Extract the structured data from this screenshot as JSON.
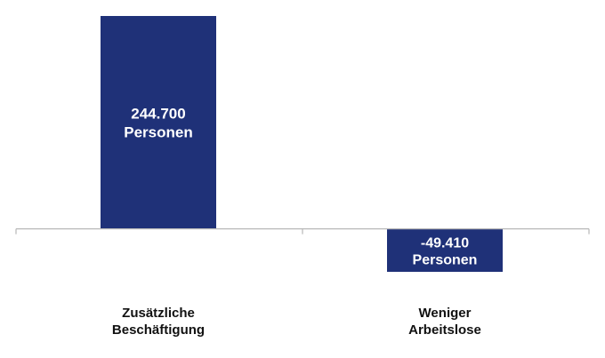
{
  "chart_data": {
    "type": "bar",
    "categories": [
      "Zusätzliche Beschäftigung",
      "Weniger Arbeitslose"
    ],
    "category_label_lines": [
      [
        "Zusätzliche",
        "Beschäftigung"
      ],
      [
        "Weniger",
        "Arbeitslose"
      ]
    ],
    "values": [
      244700,
      -49410
    ],
    "data_labels": [
      [
        "244.700",
        "Personen"
      ],
      [
        "-49.410",
        "Personen"
      ]
    ],
    "ylim": [
      -49410,
      244700
    ],
    "grid": false,
    "legend": "none",
    "bar_color": "#1f3178",
    "title": "",
    "xlabel": "",
    "ylabel": ""
  }
}
